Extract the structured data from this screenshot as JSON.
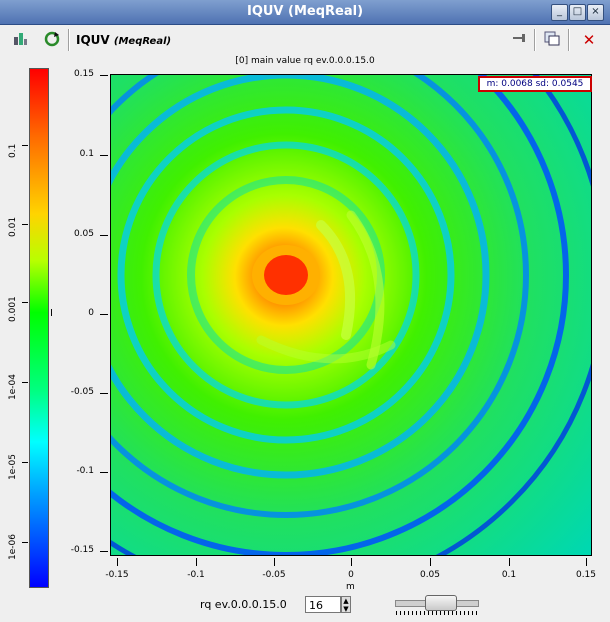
{
  "window": {
    "title": "IQUV (MeqReal)"
  },
  "toolbar": {
    "title": "IQUV",
    "subtitle": "(MeqReal)"
  },
  "plot": {
    "header": "[0] main value  rq ev.0.0.0.15.0",
    "stats": "m: 0.0068 sd: 0.0545",
    "x_label": "m",
    "colorbar_label": "I",
    "x_ticks": [
      "-0.15",
      "-0.1",
      "-0.05",
      "0",
      "0.05",
      "0.1",
      "0.15"
    ],
    "y_ticks": [
      "0.15",
      "0.1",
      "0.05",
      "0",
      "-0.05",
      "-0.1",
      "-0.15"
    ],
    "colorbar_ticks": [
      "0.1",
      "0.01",
      "0.001",
      "1e-04",
      "1e-05",
      "1e-06"
    ]
  },
  "controls": {
    "request_label": "rq ev.0.0.0.15.0",
    "request_value": "16",
    "slider_fraction": 0.45
  },
  "colors": {
    "titlebar": "#5a7dbd",
    "close_red": "#cc0000",
    "stats_border": "#cc0000"
  }
}
